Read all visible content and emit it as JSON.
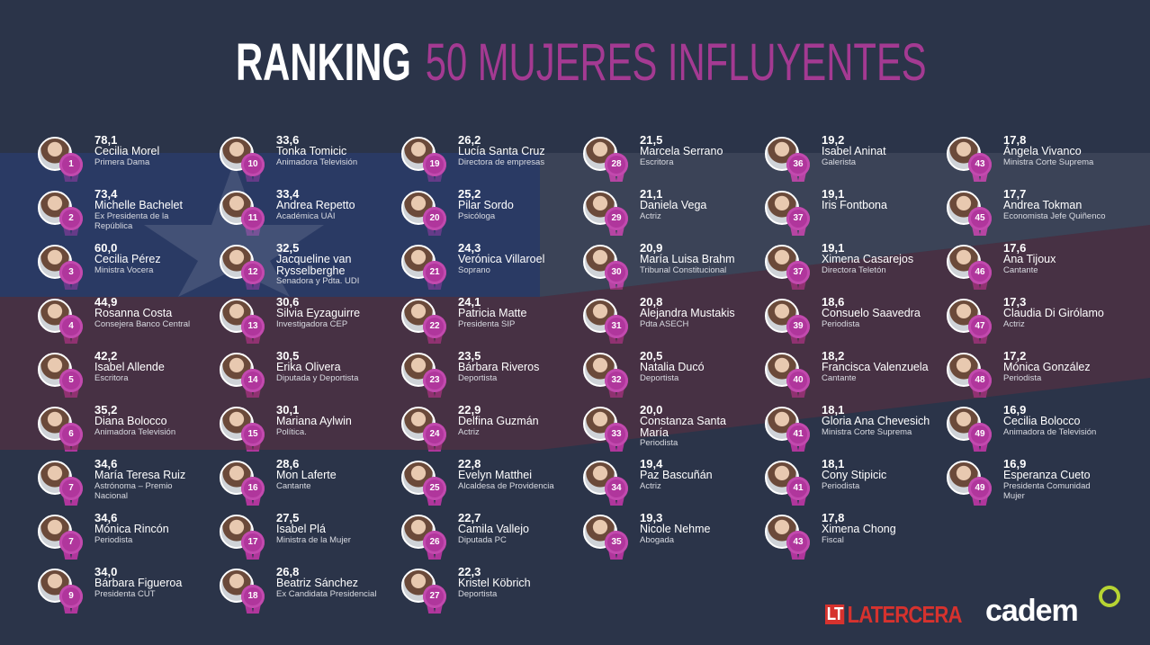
{
  "header": {
    "title": "RANKING",
    "subtitle": "50 MUJERES INFLUYENTES"
  },
  "columns": [
    [
      {
        "rank": 1,
        "score": "78,1",
        "name": "Cecilia Morel",
        "role": "Primera Dama"
      },
      {
        "rank": 2,
        "score": "73,4",
        "name": "Michelle Bachelet",
        "role": "Ex Presidenta de la República"
      },
      {
        "rank": 3,
        "score": "60,0",
        "name": "Cecilia Pérez",
        "role": "Ministra Vocera"
      },
      {
        "rank": 4,
        "score": "44,9",
        "name": "Rosanna Costa",
        "role": "Consejera Banco Central"
      },
      {
        "rank": 5,
        "score": "42,2",
        "name": "Isabel Allende",
        "role": "Escritora"
      },
      {
        "rank": 6,
        "score": "35,2",
        "name": "Diana Bolocco",
        "role": "Animadora Televisión"
      },
      {
        "rank": 7,
        "score": "34,6",
        "name": "María Teresa Ruiz",
        "role": "Astrónoma – Premio Nacional"
      },
      {
        "rank": 7,
        "score": "34,6",
        "name": "Mónica Rincón",
        "role": "Periodista"
      },
      {
        "rank": 9,
        "score": "34,0",
        "name": "Bárbara Figueroa",
        "role": "Presidenta CUT"
      }
    ],
    [
      {
        "rank": 10,
        "score": "33,6",
        "name": "Tonka Tomicic",
        "role": "Animadora Televisión"
      },
      {
        "rank": 11,
        "score": "33,4",
        "name": "Andrea Repetto",
        "role": "Académica UAI"
      },
      {
        "rank": 12,
        "score": "32,5",
        "name": "Jacqueline van Rysselberghe",
        "role": "Senadora y Pdta. UDI"
      },
      {
        "rank": 13,
        "score": "30,6",
        "name": "Silvia Eyzaguirre",
        "role": "Investigadora CEP"
      },
      {
        "rank": 14,
        "score": "30,5",
        "name": "Erika Olivera",
        "role": "Diputada y Deportista"
      },
      {
        "rank": 15,
        "score": "30,1",
        "name": "Mariana Aylwin",
        "role": "Política."
      },
      {
        "rank": 16,
        "score": "28,6",
        "name": "Mon Laferte",
        "role": "Cantante"
      },
      {
        "rank": 17,
        "score": "27,5",
        "name": "Isabel Plá",
        "role": "Ministra de la Mujer"
      },
      {
        "rank": 18,
        "score": "26,8",
        "name": "Beatriz Sánchez",
        "role": "Ex Candidata Presidencial"
      }
    ],
    [
      {
        "rank": 19,
        "score": "26,2",
        "name": "Lucía Santa Cruz",
        "role": "Directora de empresas"
      },
      {
        "rank": 20,
        "score": "25,2",
        "name": "Pilar Sordo",
        "role": "Psicóloga"
      },
      {
        "rank": 21,
        "score": "24,3",
        "name": "Verónica Villaroel",
        "role": "Soprano"
      },
      {
        "rank": 22,
        "score": "24,1",
        "name": "Patricia Matte",
        "role": "Presidenta SIP"
      },
      {
        "rank": 23,
        "score": "23,5",
        "name": "Bárbara Riveros",
        "role": "Deportista"
      },
      {
        "rank": 24,
        "score": "22,9",
        "name": "Delfina Guzmán",
        "role": "Actriz"
      },
      {
        "rank": 25,
        "score": "22,8",
        "name": "Evelyn Matthei",
        "role": "Alcaldesa de Providencia"
      },
      {
        "rank": 26,
        "score": "22,7",
        "name": "Camila Vallejo",
        "role": "Diputada PC"
      },
      {
        "rank": 27,
        "score": "22,3",
        "name": "Kristel Köbrich",
        "role": "Deportista"
      }
    ],
    [
      {
        "rank": 28,
        "score": "21,5",
        "name": "Marcela Serrano",
        "role": "Escritora"
      },
      {
        "rank": 29,
        "score": "21,1",
        "name": "Daniela Vega",
        "role": "Actriz"
      },
      {
        "rank": 30,
        "score": "20,9",
        "name": "María Luisa Brahm",
        "role": "Tribunal Constitucional"
      },
      {
        "rank": 31,
        "score": "20,8",
        "name": "Alejandra Mustakis",
        "role": "Pdta ASECH"
      },
      {
        "rank": 32,
        "score": "20,5",
        "name": "Natalia Ducó",
        "role": "Deportista"
      },
      {
        "rank": 33,
        "score": "20,0",
        "name": "Constanza Santa María",
        "role": "Periodista"
      },
      {
        "rank": 34,
        "score": "19,4",
        "name": "Paz Bascuñán",
        "role": "Actriz"
      },
      {
        "rank": 35,
        "score": "19,3",
        "name": "Nicole Nehme",
        "role": "Abogada"
      }
    ],
    [
      {
        "rank": 36,
        "score": "19,2",
        "name": "Isabel Aninat",
        "role": "Galerista"
      },
      {
        "rank": 37,
        "score": "19,1",
        "name": "Iris Fontbona"
      },
      {
        "rank": 37,
        "score": "19,1",
        "name": "Ximena Casarejos",
        "role": "Directora Teletón"
      },
      {
        "rank": 39,
        "score": "18,6",
        "name": "Consuelo Saavedra",
        "role": "Periodista"
      },
      {
        "rank": 40,
        "score": "18,2",
        "name": "Francisca Valenzuela",
        "role": "Cantante"
      },
      {
        "rank": 41,
        "score": "18,1",
        "name": "Gloria Ana Chevesich",
        "role": "Ministra Corte Suprema"
      },
      {
        "rank": 41,
        "score": "18,1",
        "name": "Cony Stipicic",
        "role": "Periodista"
      },
      {
        "rank": 43,
        "score": "17,8",
        "name": "Ximena Chong",
        "role": "Fiscal"
      }
    ],
    [
      {
        "rank": 43,
        "score": "17,8",
        "name": "Ángela Vivanco",
        "role": "Ministra Corte Suprema"
      },
      {
        "rank": 45,
        "score": "17,7",
        "name": "Andrea Tokman",
        "role": "Economista Jefe Quiñenco"
      },
      {
        "rank": 46,
        "score": "17,6",
        "name": "Ana Tijoux",
        "role": "Cantante"
      },
      {
        "rank": 47,
        "score": "17,3",
        "name": "Claudia Di Girólamo",
        "role": "Actriz"
      },
      {
        "rank": 48,
        "score": "17,2",
        "name": "Mónica González",
        "role": "Periodista"
      },
      {
        "rank": 49,
        "score": "16,9",
        "name": "Cecilia Bolocco",
        "role": "Animadora de Televisión"
      },
      {
        "rank": 49,
        "score": "16,9",
        "name": "Esperanza Cueto",
        "role": "Presidenta Comunidad Mujer"
      }
    ]
  ],
  "footer": {
    "mark": "LT",
    "brand": "LATERCERA",
    "partner": "cadem"
  }
}
